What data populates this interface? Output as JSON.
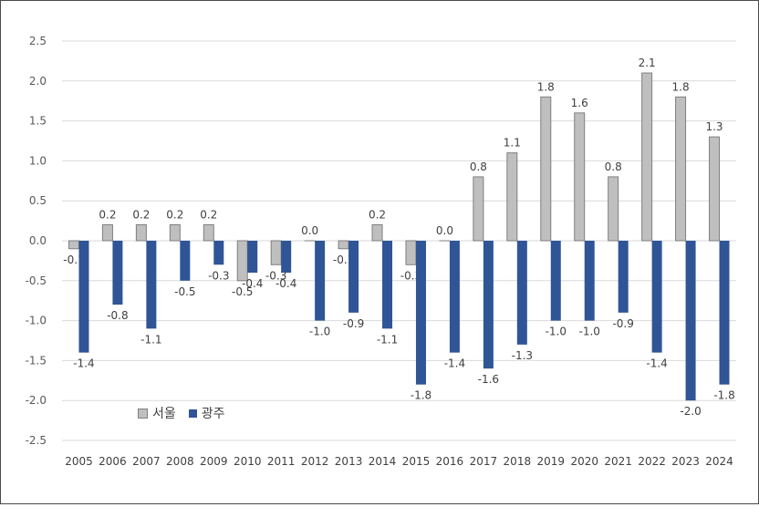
{
  "chart_data": {
    "type": "bar",
    "categories": [
      "2005",
      "2006",
      "2007",
      "2008",
      "2009",
      "2010",
      "2011",
      "2012",
      "2013",
      "2014",
      "2015",
      "2016",
      "2017",
      "2018",
      "2019",
      "2020",
      "2021",
      "2022",
      "2023",
      "2024"
    ],
    "series": [
      {
        "name": "서울",
        "color": "#bfbfbf",
        "values": [
          -0.1,
          0.2,
          0.2,
          0.2,
          0.2,
          -0.5,
          -0.3,
          0.0,
          -0.1,
          0.2,
          -0.3,
          0.0,
          0.8,
          1.1,
          1.8,
          1.6,
          0.8,
          2.1,
          1.8,
          1.3
        ],
        "labels": [
          "-0.1",
          "0.2",
          "0.2",
          "0.2",
          "0.2",
          "-0.5",
          "-0.3",
          "0.0",
          "-0.1",
          "0.2",
          "-0.3",
          "0.0",
          "0.8",
          "1.1",
          "1.8",
          "1.6",
          "0.8",
          "2.1",
          "1.8",
          "1.3"
        ]
      },
      {
        "name": "광주",
        "color": "#2f5597",
        "values": [
          -1.4,
          -0.8,
          -1.1,
          -0.5,
          -0.3,
          -0.4,
          -0.4,
          -1.0,
          -0.9,
          -1.1,
          -1.8,
          -1.4,
          -1.6,
          -1.3,
          -1.0,
          -1.0,
          -0.9,
          -1.4,
          -2.0,
          -1.8
        ],
        "labels": [
          "-1.4",
          "-0.8",
          "-1.1",
          "-0.5",
          "-0.3",
          "-0.4",
          "-0.4",
          "-1.0",
          "-0.9",
          "-1.1",
          "-1.8",
          "-1.4",
          "-1.6",
          "-1.3",
          "-1.0",
          "-1.0",
          "-0.9",
          "-1.4",
          "-2.0",
          "-1.8"
        ]
      }
    ],
    "yticks": [
      "2.5",
      "2.0",
      "1.5",
      "1.0",
      "0.5",
      "0.0",
      "-0.5",
      "-1.0",
      "-1.5",
      "-2.0",
      "-2.5"
    ],
    "ylim": [
      -2.5,
      2.5
    ],
    "grid": true,
    "legend_position": "bottom-left"
  }
}
